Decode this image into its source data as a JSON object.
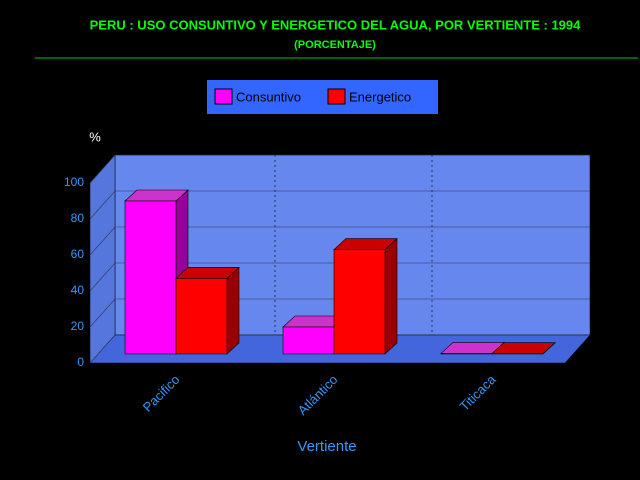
{
  "chart_data": {
    "type": "bar3d",
    "title": "PERU : USO CONSUNTIVO Y ENERGETICO DEL AGUA, POR VERTIENTE : 1994",
    "subtitle": "(PORCENTAJE)",
    "y_label": "%",
    "x_label": "Vertiente",
    "categories": [
      "Pacifico",
      "Atlántico",
      "Titicaca"
    ],
    "series": [
      {
        "name": "Consuntivo",
        "color": "#ff00ff",
        "values": [
          85,
          15,
          0.3
        ]
      },
      {
        "name": "Energetico",
        "color": "#ff0000",
        "values": [
          42,
          58,
          0.2
        ]
      }
    ],
    "ylim": [
      0,
      100
    ],
    "yticks": [
      0,
      20,
      40,
      60,
      80,
      100
    ],
    "grid": true
  }
}
